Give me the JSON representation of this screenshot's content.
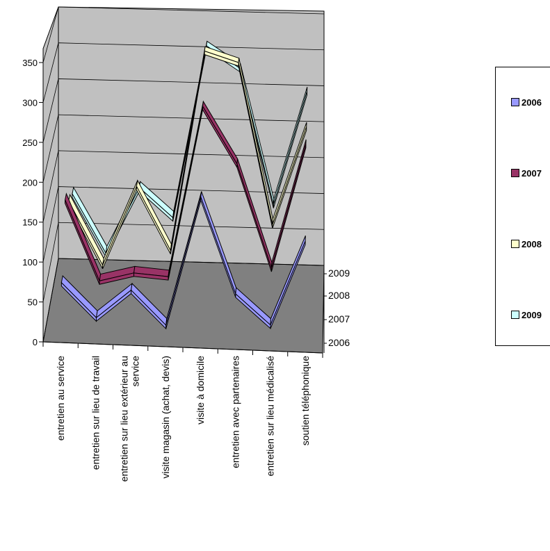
{
  "chart_data": {
    "type": "line",
    "categories": [
      "entretien au service",
      "entretien sur lieu de travail",
      "entretien sur lieu extérieur au service",
      "visite magasin (achat, devis)",
      "visite à domicile",
      "entretien avec partenaires",
      "entretien sur lieu médicalisé",
      "soutien téléphonique"
    ],
    "category_lines": [
      [
        "entretien au service"
      ],
      [
        "entretien sur lieu de travail"
      ],
      [
        "entretien sur lieu extérieur au",
        "service"
      ],
      [
        "visite magasin (achat, devis)"
      ],
      [
        "visite à domicile"
      ],
      [
        "entretien avec partenaires"
      ],
      [
        "entretien sur lieu médicalisé"
      ],
      [
        "soutien téléphonique"
      ]
    ],
    "series": [
      {
        "name": "2006",
        "values": [
          68,
          23,
          57,
          12,
          173,
          50,
          10,
          115
        ]
      },
      {
        "name": "2007",
        "values": [
          150,
          45,
          55,
          50,
          270,
          195,
          60,
          220
        ]
      },
      {
        "name": "2008",
        "values": [
          125,
          40,
          145,
          60,
          325,
          310,
          95,
          225
        ]
      },
      {
        "name": "2009",
        "values": [
          110,
          30,
          120,
          80,
          315,
          285,
          100,
          255
        ]
      }
    ],
    "colors": {
      "2006": "#9999ff",
      "2007": "#993366",
      "2008": "#ffffcc",
      "2009": "#ccffff"
    },
    "y_ticks": [
      0,
      50,
      100,
      150,
      200,
      250,
      300,
      350
    ],
    "ylim": [
      0,
      350
    ],
    "depth_labels": [
      "2009",
      "2008",
      "2007",
      "2006"
    ],
    "legend_position": "right",
    "grid": true
  }
}
